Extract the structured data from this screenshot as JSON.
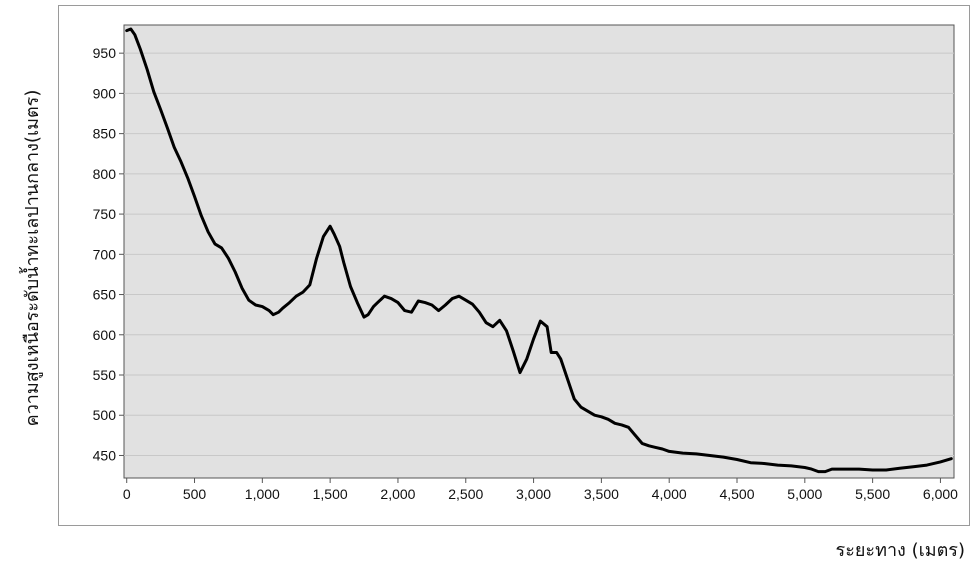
{
  "chart_data": {
    "type": "line",
    "title": "",
    "xlabel": "ระยะทาง (เมตร)",
    "ylabel": "ความสูงเหนือระดับน้ำทะเลปานกลาง(เมตร)",
    "xlim": [
      -20,
      6100
    ],
    "ylim": [
      422,
      985
    ],
    "xticks": [
      0,
      500,
      1000,
      1500,
      2000,
      2500,
      3000,
      3500,
      4000,
      4500,
      5000,
      5500,
      6000
    ],
    "xtick_labels": [
      "0",
      "500",
      "1,000",
      "1,500",
      "2,000",
      "2,500",
      "3,000",
      "3,500",
      "4,000",
      "4,500",
      "5,000",
      "5,500",
      "6,000"
    ],
    "yticks": [
      450,
      500,
      550,
      600,
      650,
      700,
      750,
      800,
      850,
      900,
      950
    ],
    "ytick_labels": [
      "450",
      "500",
      "550",
      "600",
      "650",
      "700",
      "750",
      "800",
      "850",
      "900",
      "950"
    ],
    "grid": "horizontal",
    "legend": "none",
    "colors": {
      "plot_background": "#e1e1e1",
      "line": "#000000",
      "grid": "#c8c8c8",
      "axis": "#555555"
    },
    "series": [
      {
        "x": [
          0,
          30,
          60,
          100,
          150,
          200,
          250,
          300,
          350,
          400,
          450,
          500,
          550,
          600,
          650,
          700,
          750,
          800,
          850,
          900,
          950,
          1000,
          1050,
          1080,
          1120,
          1150,
          1200,
          1250,
          1300,
          1350,
          1400,
          1450,
          1500,
          1530,
          1570,
          1600,
          1650,
          1700,
          1750,
          1780,
          1820,
          1850,
          1900,
          1950,
          2000,
          2050,
          2100,
          2150,
          2200,
          2250,
          2300,
          2350,
          2400,
          2450,
          2500,
          2550,
          2600,
          2650,
          2700,
          2750,
          2800,
          2850,
          2900,
          2950,
          3000,
          3050,
          3100,
          3130,
          3170,
          3200,
          3250,
          3300,
          3350,
          3400,
          3450,
          3500,
          3550,
          3600,
          3650,
          3700,
          3750,
          3800,
          3850,
          3900,
          3950,
          4000,
          4100,
          4200,
          4300,
          4400,
          4500,
          4600,
          4700,
          4800,
          4900,
          5000,
          5050,
          5100,
          5150,
          5200,
          5250,
          5300,
          5400,
          5500,
          5600,
          5700,
          5800,
          5900,
          6000,
          6080
        ],
        "y": [
          978,
          980,
          973,
          955,
          930,
          902,
          880,
          857,
          833,
          815,
          795,
          772,
          748,
          728,
          713,
          708,
          695,
          678,
          658,
          643,
          637,
          635,
          630,
          625,
          628,
          633,
          640,
          648,
          653,
          662,
          695,
          722,
          735,
          725,
          710,
          690,
          660,
          640,
          622,
          625,
          635,
          640,
          648,
          645,
          640,
          630,
          628,
          642,
          640,
          637,
          630,
          637,
          645,
          648,
          643,
          638,
          628,
          615,
          610,
          618,
          605,
          580,
          553,
          570,
          595,
          617,
          610,
          578,
          578,
          570,
          545,
          520,
          510,
          505,
          500,
          498,
          495,
          490,
          488,
          485,
          475,
          465,
          462,
          460,
          458,
          455,
          453,
          452,
          450,
          448,
          445,
          441,
          440,
          438,
          437,
          435,
          433,
          430,
          430,
          433,
          433,
          433,
          433,
          432,
          432,
          434,
          436,
          438,
          442,
          446
        ]
      }
    ]
  }
}
